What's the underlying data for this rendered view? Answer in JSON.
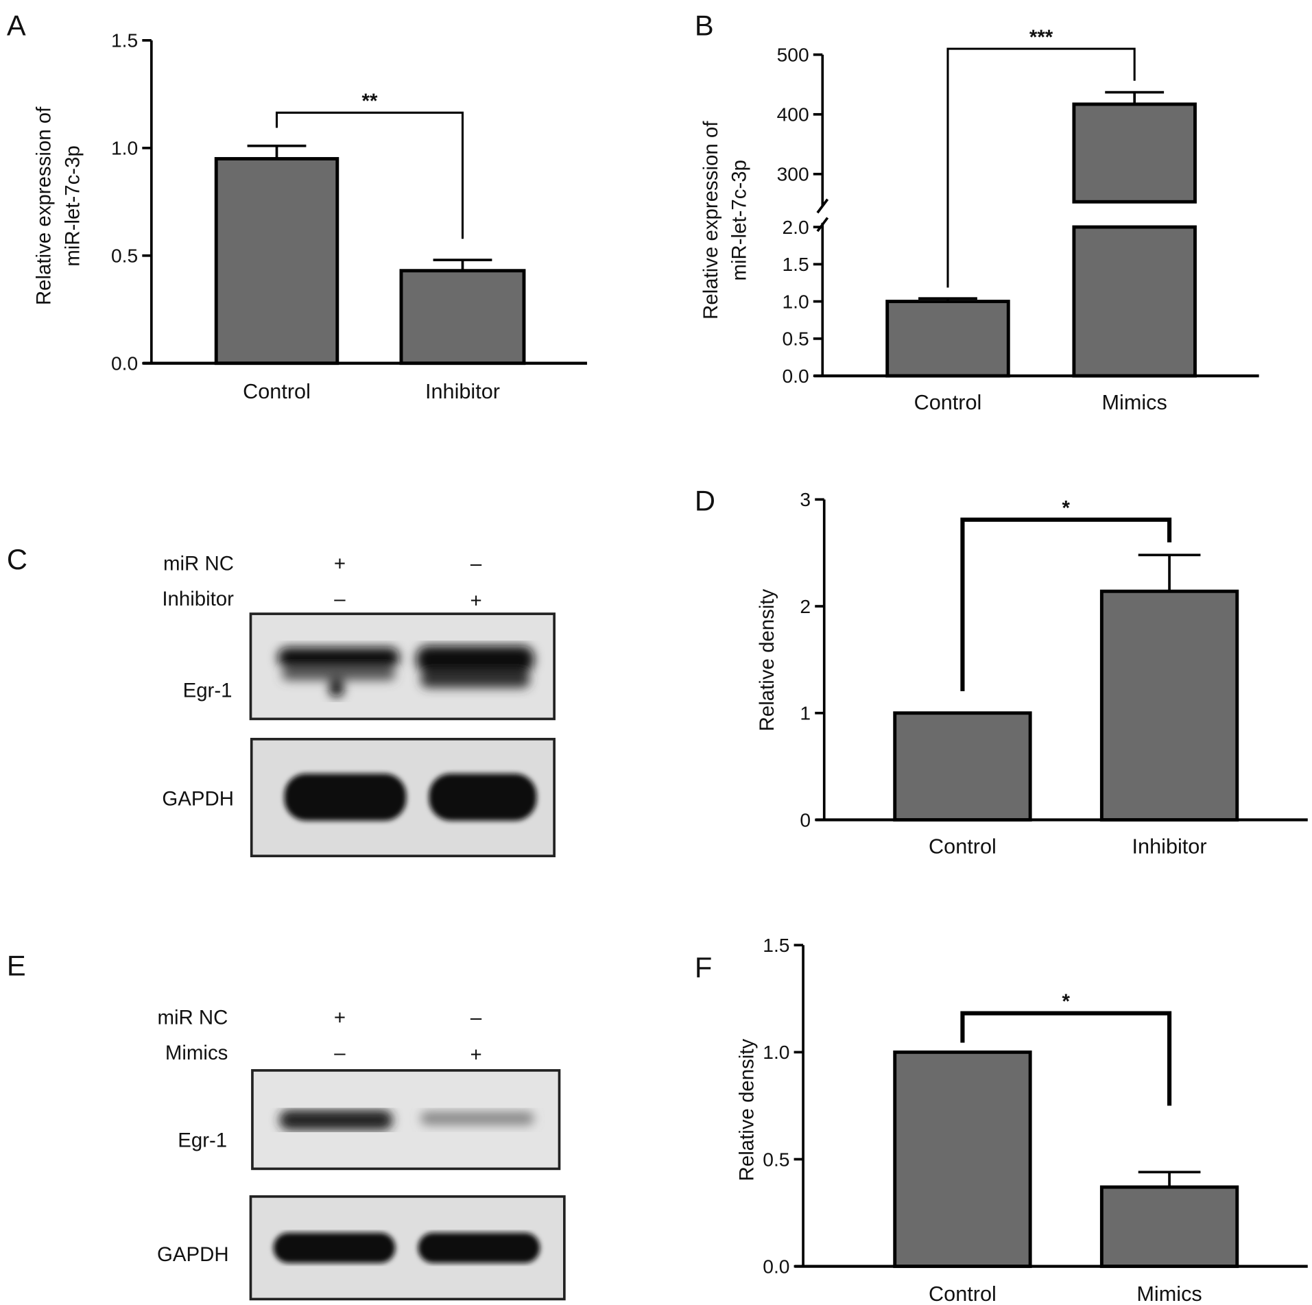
{
  "colors": {
    "bar_fill": "#6b6b6b",
    "bar_edge": "#000000",
    "blot_bg": "#e4e4e4",
    "band": "#0a0a0a"
  },
  "panels": {
    "A": {
      "letter": "A"
    },
    "B": {
      "letter": "B"
    },
    "C": {
      "letter": "C",
      "rows": [
        "miR NC",
        "Inhibitor"
      ],
      "signs": [
        [
          "+",
          "–"
        ],
        [
          "–",
          "+"
        ]
      ],
      "blots": [
        "Egr-1",
        "GAPDH"
      ]
    },
    "D": {
      "letter": "D"
    },
    "E": {
      "letter": "E",
      "rows": [
        "miR NC",
        "Mimics"
      ],
      "signs": [
        [
          "+",
          "–"
        ],
        [
          "–",
          "+"
        ]
      ],
      "blots": [
        "Egr-1",
        "GAPDH"
      ]
    },
    "F": {
      "letter": "F"
    }
  },
  "chart_data": [
    {
      "panel": "A",
      "type": "bar",
      "categories": [
        "Control",
        "Inhibitor"
      ],
      "values": [
        0.95,
        0.43
      ],
      "errors": [
        0.06,
        0.05
      ],
      "ylabel": [
        "Relative expression of",
        "miR-let-7c-3p"
      ],
      "ylim": [
        0,
        1.5
      ],
      "yticks": [
        "0.0",
        "0.5",
        "1.0",
        "1.5"
      ],
      "significance": "**",
      "grid": false
    },
    {
      "panel": "B",
      "type": "bar",
      "categories": [
        "Control",
        "Mimics"
      ],
      "values": [
        1.0,
        417
      ],
      "errors": [
        0.04,
        20
      ],
      "ylabel": [
        "Relative expression of",
        "miR-let-7c-3p"
      ],
      "ylim": [
        0,
        500
      ],
      "axis_break": [
        2.0,
        250
      ],
      "yticks": [
        "0.0",
        "0.5",
        "1.0",
        "1.5",
        "2.0",
        "300",
        "400",
        "500"
      ],
      "significance": "***",
      "grid": false
    },
    {
      "panel": "D",
      "type": "bar",
      "categories": [
        "Control",
        "Inhibitor"
      ],
      "values": [
        1.0,
        2.14
      ],
      "errors": [
        0,
        0.34
      ],
      "ylabel": [
        "Relative density"
      ],
      "ylim": [
        0,
        3
      ],
      "yticks": [
        "0",
        "1",
        "2",
        "3"
      ],
      "significance": "*",
      "grid": false
    },
    {
      "panel": "F",
      "type": "bar",
      "categories": [
        "Control",
        "Mimics"
      ],
      "values": [
        1.0,
        0.37
      ],
      "errors": [
        0,
        0.07
      ],
      "ylabel": [
        "Relative density"
      ],
      "ylim": [
        0,
        1.5
      ],
      "yticks": [
        "0.0",
        "0.5",
        "1.0",
        "1.5"
      ],
      "significance": "*",
      "grid": false
    }
  ]
}
